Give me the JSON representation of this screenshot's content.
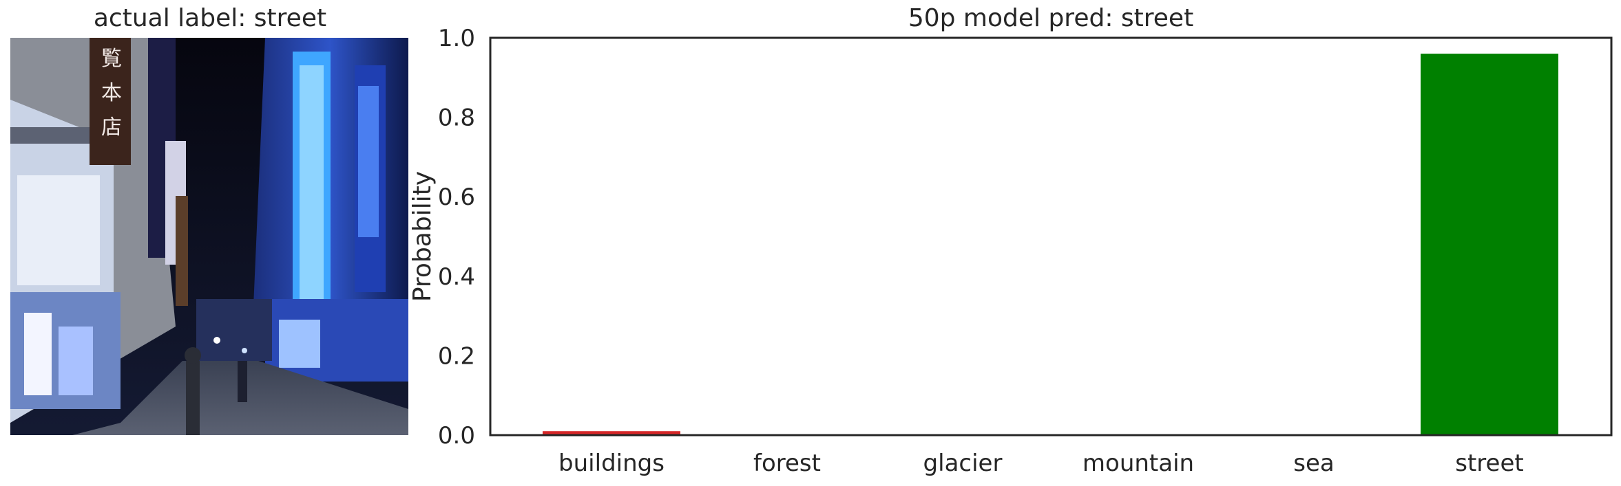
{
  "left_panel": {
    "title": "actual label: street"
  },
  "chart_data": {
    "type": "bar",
    "title": "50p model pred: street",
    "xlabel": "",
    "ylabel": "Probability",
    "categories": [
      "buildings",
      "forest",
      "glacier",
      "mountain",
      "sea",
      "street"
    ],
    "values": [
      0.01,
      0.0,
      0.0,
      0.0,
      0.0,
      0.96
    ],
    "bar_colors": [
      "#d62728",
      "#cccccc",
      "#cccccc",
      "#cccccc",
      "#cccccc",
      "#008000"
    ],
    "ylim": [
      0.0,
      1.0
    ],
    "yticks": [
      "0.0",
      "0.2",
      "0.4",
      "0.6",
      "0.8",
      "1.0"
    ],
    "grid": false,
    "legend": "none"
  }
}
